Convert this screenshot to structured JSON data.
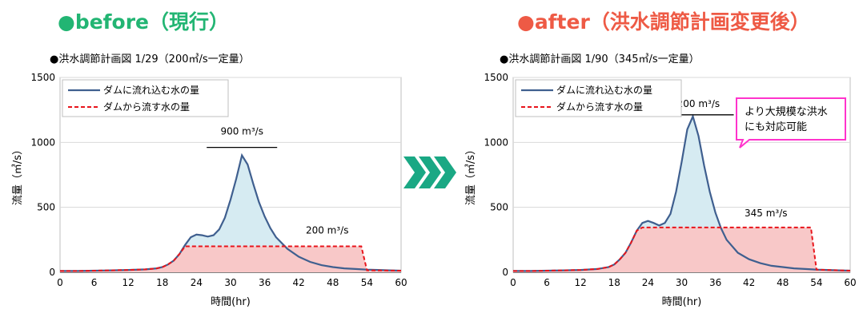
{
  "headings": {
    "before": "●before（現行）",
    "after": "●after（洪水調節計画変更後）"
  },
  "colors": {
    "before_heading": "#22b573",
    "after_heading": "#ee5a45",
    "inflow": "#3f5f8f",
    "outflow": "#e8141b",
    "inflow_fill": "#d6ebf2",
    "outflow_fill": "#f8c8c8",
    "arrow": "#1aa884",
    "callout_border": "#ff33cc"
  },
  "chart_data": [
    {
      "type": "area",
      "title": "●洪水調節計画図 1/29（200㎥/s一定量）",
      "xlabel": "時間(hr)",
      "ylabel": "流量（㎥/s）",
      "xlim": [
        0,
        60
      ],
      "ylim": [
        0,
        1500
      ],
      "xticks": [
        0,
        6,
        12,
        18,
        24,
        30,
        36,
        42,
        48,
        54,
        60
      ],
      "yticks": [
        0,
        500,
        1000,
        1500
      ],
      "grid": true,
      "legend_position": "top-left",
      "series": [
        {
          "name": "ダムに流れ込む水の量",
          "style": "solid",
          "x": [
            0,
            3,
            6,
            9,
            12,
            15,
            17,
            18,
            19,
            20,
            21,
            22,
            23,
            24,
            25,
            26,
            27,
            28,
            29,
            30,
            31,
            32,
            33,
            34,
            35,
            36,
            37,
            38,
            40,
            42,
            44,
            46,
            48,
            50,
            52,
            54,
            56,
            58,
            60
          ],
          "y": [
            10,
            10,
            12,
            15,
            18,
            22,
            30,
            40,
            60,
            90,
            140,
            210,
            270,
            290,
            285,
            275,
            285,
            330,
            420,
            560,
            720,
            900,
            830,
            680,
            540,
            430,
            340,
            270,
            180,
            120,
            80,
            55,
            40,
            30,
            25,
            20,
            18,
            15,
            12
          ]
        },
        {
          "name": "ダムから流す水の量",
          "style": "dashed",
          "x": [
            0,
            3,
            6,
            9,
            12,
            15,
            17,
            18,
            19,
            20,
            21,
            22,
            53,
            54,
            60
          ],
          "y": [
            10,
            10,
            12,
            15,
            18,
            22,
            30,
            40,
            60,
            90,
            140,
            200,
            200,
            15,
            12
          ]
        }
      ],
      "annotations": [
        {
          "text": "900 m³/s",
          "x": 32,
          "y": 900
        },
        {
          "text": "200 m³/s",
          "x": 47,
          "y": 200
        }
      ]
    },
    {
      "type": "area",
      "title": "●洪水調節計画図 1/90（345㎥/s一定量）",
      "xlabel": "時間(hr)",
      "ylabel": "流量（㎥/s）",
      "xlim": [
        0,
        60
      ],
      "ylim": [
        0,
        1500
      ],
      "xticks": [
        0,
        6,
        12,
        18,
        24,
        30,
        36,
        42,
        48,
        54,
        60
      ],
      "yticks": [
        0,
        500,
        1000,
        1500
      ],
      "grid": true,
      "legend_position": "top-left",
      "series": [
        {
          "name": "ダムに流れ込む水の量",
          "style": "solid",
          "x": [
            0,
            3,
            6,
            9,
            12,
            15,
            17,
            18,
            19,
            20,
            21,
            22,
            23,
            24,
            25,
            26,
            27,
            28,
            29,
            30,
            31,
            32,
            33,
            34,
            35,
            36,
            37,
            38,
            40,
            42,
            44,
            46,
            48,
            50,
            52,
            54,
            56,
            58,
            60
          ],
          "y": [
            10,
            10,
            12,
            15,
            18,
            25,
            40,
            60,
            100,
            150,
            230,
            320,
            380,
            395,
            380,
            360,
            380,
            450,
            620,
            850,
            1100,
            1200,
            1050,
            820,
            620,
            460,
            340,
            250,
            150,
            100,
            70,
            50,
            40,
            30,
            25,
            20,
            18,
            15,
            12
          ]
        },
        {
          "name": "ダムから流す水の量",
          "style": "dashed",
          "x": [
            0,
            3,
            6,
            9,
            12,
            15,
            17,
            18,
            19,
            20,
            21,
            22,
            23,
            53,
            54,
            60
          ],
          "y": [
            10,
            10,
            12,
            15,
            18,
            25,
            40,
            60,
            100,
            150,
            230,
            320,
            345,
            345,
            20,
            12
          ]
        }
      ],
      "annotations": [
        {
          "text": "1200 m³/s",
          "x": 33,
          "y": 1200
        },
        {
          "text": "345 m³/s",
          "x": 45,
          "y": 345
        }
      ],
      "callout": {
        "lines": [
          "より大規模な洪水",
          "にも対応可能"
        ]
      }
    }
  ]
}
